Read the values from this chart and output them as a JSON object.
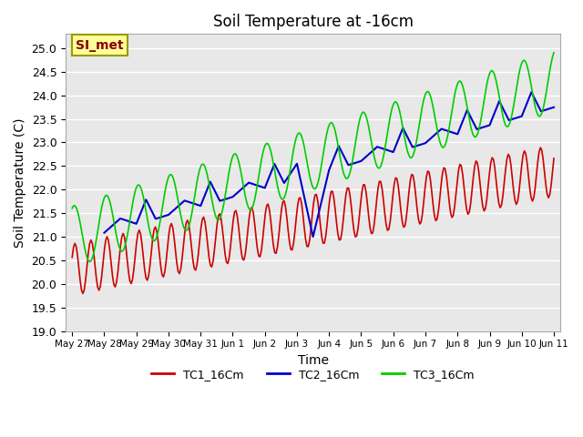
{
  "title": "Soil Temperature at -16cm",
  "xlabel": "Time",
  "ylabel": "Soil Temperature (C)",
  "ylim": [
    19.0,
    25.3
  ],
  "yticks": [
    19.0,
    19.5,
    20.0,
    20.5,
    21.0,
    21.5,
    22.0,
    22.5,
    23.0,
    23.5,
    24.0,
    24.5,
    25.0
  ],
  "bg_color": "#e8e8e8",
  "fig_color": "#ffffff",
  "grid_color": "#ffffff",
  "annotation_text": "SI_met",
  "annotation_bg": "#ffff99",
  "annotation_border": "#999900",
  "annotation_text_color": "#8b0000",
  "tc1_color": "#cc0000",
  "tc2_color": "#0000cc",
  "tc3_color": "#00cc00",
  "tc1_label": "TC1_16Cm",
  "tc2_label": "TC2_16Cm",
  "tc3_label": "TC3_16Cm",
  "xtick_labels": [
    "May 27",
    "May 28",
    "May 29",
    "May 30",
    "May 31",
    "Jun 1",
    "Jun 2",
    "Jun 3",
    "Jun 4",
    "Jun 5",
    "Jun 6",
    "Jun 7",
    "Jun 8",
    "Jun 9",
    "Jun 10",
    "Jun 11"
  ]
}
